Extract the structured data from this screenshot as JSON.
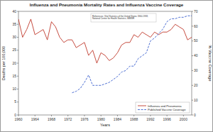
{
  "chart_data": {
    "type": "line",
    "title": "Influenza and Pneumonia Mortality Rates and Influenza Vaccine Coverage",
    "x_label": "Years",
    "y_label": "Deaths per 100,000",
    "y2_label": "% Vaccine Coverage",
    "annotation": "References: Vital Statistics of the United States 1960-1993; National Center for Health Statistics; MMWR",
    "x": [
      1960,
      1961,
      1962,
      1963,
      1964,
      1965,
      1966,
      1967,
      1968,
      1969,
      1970,
      1971,
      1972,
      1973,
      1974,
      1975,
      1976,
      1977,
      1978,
      1979,
      1980,
      1981,
      1982,
      1983,
      1984,
      1985,
      1986,
      1987,
      1988,
      1989,
      1990,
      1991,
      1992,
      1993,
      1994,
      1995,
      1996,
      1997,
      1998,
      1999,
      2000,
      2001,
      2002
    ],
    "series": [
      {
        "name": "Influenza and Pneumonia",
        "color": "#c0392b",
        "line_style": "solid",
        "values": [
          37,
          30,
          33,
          37,
          31,
          32,
          33,
          29,
          36,
          34,
          30,
          28,
          29,
          29,
          26,
          27,
          28,
          23,
          25,
          20,
          24,
          23,
          21,
          22,
          24,
          27,
          28,
          28,
          31,
          30,
          32,
          31,
          30,
          32,
          31,
          32,
          32,
          33,
          35,
          34,
          33,
          29,
          30
        ]
      },
      {
        "name": "Published Vaccine Coverage",
        "color": "#3a5fcd",
        "line_style": "dashed",
        "axis": "y2",
        "values": [
          null,
          null,
          null,
          null,
          null,
          null,
          null,
          null,
          null,
          null,
          null,
          null,
          null,
          15,
          16,
          18,
          22,
          27,
          20,
          20,
          20,
          21,
          22,
          24,
          26,
          29,
          30,
          33,
          33,
          38,
          40,
          42,
          50,
          52,
          55,
          58,
          63,
          65,
          65,
          66,
          66,
          67,
          67
        ]
      }
    ],
    "xlim": [
      1960,
      2002
    ],
    "xticks": [
      1960,
      1964,
      1968,
      1972,
      1976,
      1980,
      1984,
      1988,
      1992,
      1996,
      2000
    ],
    "ylim": [
      0,
      40
    ],
    "yticks": [
      0,
      5,
      10,
      15,
      20,
      25,
      30,
      35,
      40
    ],
    "y2lim": [
      0,
      70
    ],
    "y2ticks": [
      0,
      10,
      20,
      30,
      40,
      50,
      60,
      70
    ],
    "grid": false,
    "legend": "lower right"
  }
}
